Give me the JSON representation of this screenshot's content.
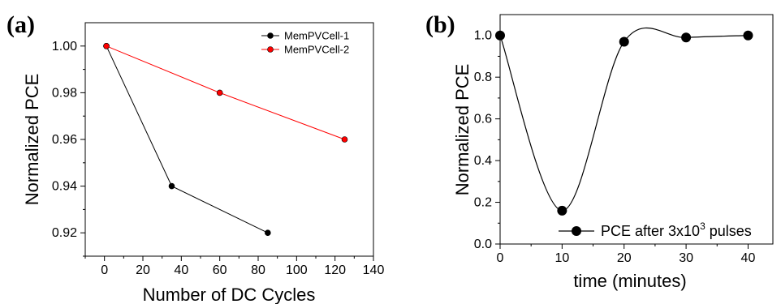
{
  "panels": {
    "a": {
      "label": "(a)"
    },
    "b": {
      "label": "(b)"
    }
  },
  "chart_data": [
    {
      "type": "line",
      "panel": "(a)",
      "xlabel": "Number of DC Cycles",
      "ylabel": "Normalized PCE",
      "xlim": [
        -10,
        140
      ],
      "ylim": [
        0.91,
        1.01
      ],
      "xticks": [
        "0",
        "20",
        "40",
        "60",
        "80",
        "100",
        "120",
        "140"
      ],
      "yticks": [
        "0.92",
        "0.94",
        "0.96",
        "0.98",
        "1.00"
      ],
      "legend_position": "top-right",
      "series": [
        {
          "name": "MemPVCell-1",
          "color": "#000000",
          "x": [
            1,
            35,
            85
          ],
          "y": [
            1.0,
            0.94,
            0.92
          ]
        },
        {
          "name": "MemPVCell-2",
          "color": "#ff0000",
          "x": [
            1,
            60,
            125
          ],
          "y": [
            1.0,
            0.98,
            0.96
          ]
        }
      ]
    },
    {
      "type": "line",
      "panel": "(b)",
      "xlabel": "time (minutes)",
      "ylabel": "Normalized PCE",
      "xlim": [
        0,
        44
      ],
      "ylim": [
        0.0,
        1.1
      ],
      "xticks": [
        "0",
        "10",
        "20",
        "30",
        "40"
      ],
      "yticks": [
        "0.0",
        "0.2",
        "0.4",
        "0.6",
        "0.8",
        "1.0"
      ],
      "legend_position": "bottom-right",
      "curve": "smooth-spline",
      "series": [
        {
          "name": "PCE after 3x10",
          "name_superscript": "3",
          "name_suffix": " pulses",
          "color": "#000000",
          "x": [
            0,
            10,
            20,
            30,
            40
          ],
          "y": [
            1.0,
            0.16,
            0.97,
            0.99,
            1.0
          ]
        }
      ]
    }
  ]
}
